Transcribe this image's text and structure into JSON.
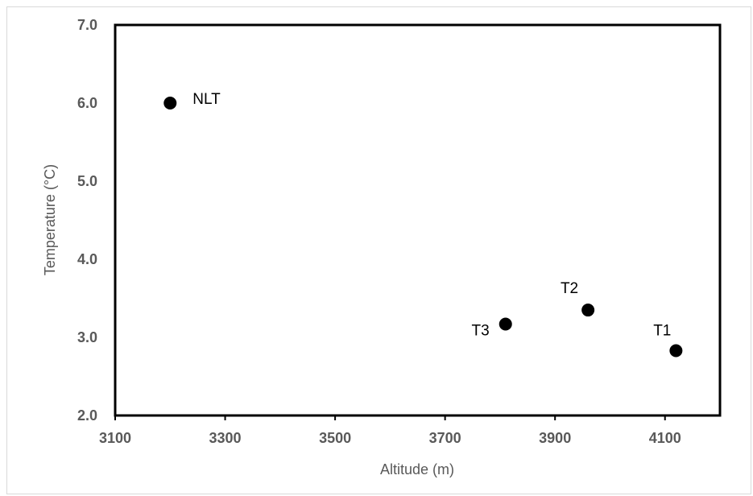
{
  "chart_data": {
    "type": "scatter",
    "title": "",
    "xlabel": "Altitude (m)",
    "ylabel": "Temperature (°C)",
    "xlim": [
      3100,
      4200
    ],
    "ylim": [
      2.0,
      7.0
    ],
    "x_ticks": [
      "3100",
      "3300",
      "3500",
      "3700",
      "3900",
      "4100"
    ],
    "y_ticks": [
      "2.0",
      "3.0",
      "4.0",
      "5.0",
      "6.0",
      "7.0"
    ],
    "grid": false,
    "legend": "none",
    "marker_color": "#000000",
    "points": [
      {
        "label": "NLT",
        "x": 3200,
        "y": 6.0
      },
      {
        "label": "T3",
        "x": 3810,
        "y": 3.17
      },
      {
        "label": "T2",
        "x": 3960,
        "y": 3.35
      },
      {
        "label": "T1",
        "x": 4120,
        "y": 2.83
      }
    ]
  }
}
